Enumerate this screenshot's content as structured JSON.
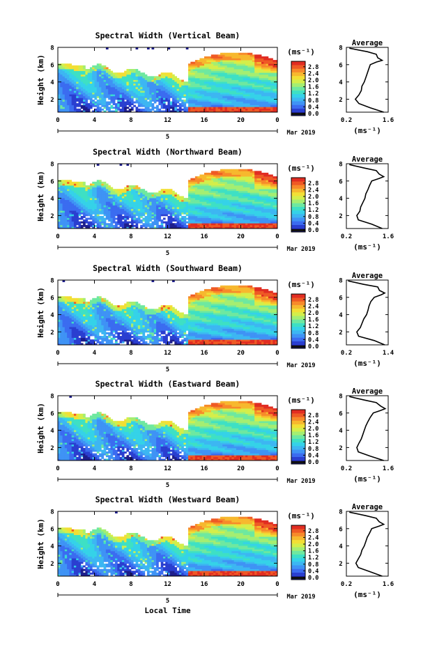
{
  "figure": {
    "ylabel": "Height (km)",
    "unit": "(ms⁻¹)",
    "date_label": "Mar 2019",
    "day_label": "5",
    "xlabel_bottom": "Local Time",
    "average_title": "Average"
  },
  "chart_data": [
    {
      "type": "heatmap",
      "title": "Spectral Width (Vertical Beam)",
      "x_ticks": [
        "0",
        "4",
        "8",
        "12",
        "16",
        "20",
        "0"
      ],
      "y_ticks": [
        "2",
        "4",
        "6",
        "8"
      ],
      "xlim": [
        0,
        24
      ],
      "ylim": [
        0.5,
        8
      ],
      "colorbar_ticks": [
        "0.0",
        "0.4",
        "0.8",
        "1.2",
        "1.6",
        "2.0",
        "2.4",
        "2.8"
      ],
      "colorbar_range": [
        0.0,
        3.0
      ],
      "profile": {
        "title": "Average",
        "x_ticks": [
          "0.2",
          "1.6"
        ],
        "xlim": [
          0.2,
          1.6
        ],
        "ylim": [
          0.5,
          8
        ],
        "y_ticks": [
          "2",
          "4",
          "6",
          "8"
        ],
        "xlabel": "(ms⁻¹)",
        "points": [
          [
            1.45,
            0.5
          ],
          [
            1.0,
            1.0
          ],
          [
            0.62,
            1.5
          ],
          [
            0.5,
            2.0
          ],
          [
            0.62,
            2.5
          ],
          [
            0.7,
            3.0
          ],
          [
            0.72,
            3.5
          ],
          [
            0.8,
            4.0
          ],
          [
            0.85,
            4.5
          ],
          [
            0.9,
            5.0
          ],
          [
            0.95,
            5.5
          ],
          [
            1.0,
            6.0
          ],
          [
            1.2,
            6.3
          ],
          [
            1.4,
            6.5
          ],
          [
            1.25,
            6.8
          ],
          [
            1.2,
            7.2
          ],
          [
            0.9,
            7.5
          ],
          [
            0.3,
            7.9
          ]
        ]
      }
    },
    {
      "type": "heatmap",
      "title": "Spectral Width (Northward Beam)",
      "x_ticks": [
        "0",
        "4",
        "8",
        "12",
        "16",
        "20",
        "0"
      ],
      "y_ticks": [
        "2",
        "4",
        "6",
        "8"
      ],
      "xlim": [
        0,
        24
      ],
      "ylim": [
        0.5,
        8
      ],
      "colorbar_ticks": [
        "0.0",
        "0.4",
        "0.8",
        "1.2",
        "1.6",
        "2.0",
        "2.4",
        "2.8"
      ],
      "colorbar_range": [
        0.0,
        3.0
      ],
      "profile": {
        "title": "Average",
        "x_ticks": [
          "0.2",
          "1.6"
        ],
        "xlim": [
          0.2,
          1.6
        ],
        "ylim": [
          0.5,
          8
        ],
        "y_ticks": [
          "2",
          "4",
          "6",
          "8"
        ],
        "xlabel": "(ms⁻¹)",
        "points": [
          [
            1.4,
            0.5
          ],
          [
            1.05,
            1.0
          ],
          [
            0.6,
            1.5
          ],
          [
            0.55,
            2.0
          ],
          [
            0.65,
            2.5
          ],
          [
            0.68,
            3.0
          ],
          [
            0.75,
            3.5
          ],
          [
            0.82,
            4.0
          ],
          [
            0.85,
            4.5
          ],
          [
            0.92,
            5.0
          ],
          [
            0.98,
            5.5
          ],
          [
            1.05,
            6.0
          ],
          [
            1.3,
            6.3
          ],
          [
            1.45,
            6.5
          ],
          [
            1.3,
            6.8
          ],
          [
            1.2,
            7.2
          ],
          [
            0.8,
            7.5
          ],
          [
            0.3,
            7.9
          ]
        ]
      }
    },
    {
      "type": "heatmap",
      "title": "Spectral Width (Southward Beam)",
      "x_ticks": [
        "0",
        "4",
        "8",
        "12",
        "16",
        "20",
        "0"
      ],
      "y_ticks": [
        "2",
        "4",
        "6",
        "8"
      ],
      "xlim": [
        0,
        24
      ],
      "ylim": [
        0.5,
        8
      ],
      "colorbar_ticks": [
        "0.0",
        "0.4",
        "0.8",
        "1.2",
        "1.6",
        "2.0",
        "2.4",
        "2.8"
      ],
      "colorbar_range": [
        0.0,
        3.0
      ],
      "profile": {
        "title": "Average",
        "x_ticks": [
          "0.2",
          "1.4"
        ],
        "xlim": [
          0.2,
          1.4
        ],
        "ylim": [
          0.5,
          8
        ],
        "y_ticks": [
          "2",
          "4",
          "6",
          "8"
        ],
        "xlabel": "(ms⁻¹)",
        "points": [
          [
            1.3,
            0.5
          ],
          [
            1.0,
            1.0
          ],
          [
            0.55,
            1.5
          ],
          [
            0.5,
            2.0
          ],
          [
            0.6,
            2.5
          ],
          [
            0.65,
            3.0
          ],
          [
            0.7,
            3.5
          ],
          [
            0.78,
            4.0
          ],
          [
            0.82,
            4.5
          ],
          [
            0.85,
            5.0
          ],
          [
            0.9,
            5.5
          ],
          [
            1.0,
            6.0
          ],
          [
            1.2,
            6.3
          ],
          [
            1.3,
            6.5
          ],
          [
            1.15,
            6.8
          ],
          [
            1.1,
            7.2
          ],
          [
            0.7,
            7.5
          ],
          [
            0.25,
            7.9
          ]
        ]
      }
    },
    {
      "type": "heatmap",
      "title": "Spectral Width (Eastward Beam)",
      "x_ticks": [
        "0",
        "4",
        "8",
        "12",
        "16",
        "20",
        "0"
      ],
      "y_ticks": [
        "2",
        "4",
        "6",
        "8"
      ],
      "xlim": [
        0,
        24
      ],
      "ylim": [
        0.5,
        8
      ],
      "colorbar_ticks": [
        "0.0",
        "0.4",
        "0.8",
        "1.2",
        "1.6",
        "2.0",
        "2.4",
        "2.8"
      ],
      "colorbar_range": [
        0.0,
        3.0
      ],
      "profile": {
        "title": "Average",
        "x_ticks": [
          "0.2",
          "1.6"
        ],
        "xlim": [
          0.2,
          1.6
        ],
        "ylim": [
          0.5,
          8
        ],
        "y_ticks": [
          "2",
          "4",
          "6",
          "8"
        ],
        "xlabel": "(ms⁻¹)",
        "points": [
          [
            1.45,
            0.5
          ],
          [
            1.0,
            1.0
          ],
          [
            0.6,
            1.5
          ],
          [
            0.55,
            2.0
          ],
          [
            0.62,
            2.5
          ],
          [
            0.7,
            3.0
          ],
          [
            0.75,
            3.5
          ],
          [
            0.8,
            4.0
          ],
          [
            0.85,
            4.5
          ],
          [
            0.92,
            5.0
          ],
          [
            1.0,
            5.5
          ],
          [
            1.1,
            6.0
          ],
          [
            1.35,
            6.3
          ],
          [
            1.5,
            6.5
          ],
          [
            1.35,
            6.8
          ],
          [
            1.2,
            7.2
          ],
          [
            0.8,
            7.5
          ],
          [
            0.3,
            7.9
          ]
        ]
      }
    },
    {
      "type": "heatmap",
      "title": "Spectral Width (Westward Beam)",
      "x_ticks": [
        "0",
        "4",
        "8",
        "12",
        "16",
        "20",
        "0"
      ],
      "y_ticks": [
        "2",
        "4",
        "6",
        "8"
      ],
      "xlim": [
        0,
        24
      ],
      "ylim": [
        0.5,
        8
      ],
      "colorbar_ticks": [
        "0.0",
        "0.4",
        "0.8",
        "1.2",
        "1.6",
        "2.0",
        "2.4",
        "2.8"
      ],
      "colorbar_range": [
        0.0,
        3.0
      ],
      "profile": {
        "title": "Average",
        "x_ticks": [
          "0.2",
          "1.6"
        ],
        "xlim": [
          0.2,
          1.6
        ],
        "ylim": [
          0.5,
          8
        ],
        "y_ticks": [
          "2",
          "4",
          "6",
          "8"
        ],
        "xlabel": "(ms⁻¹)",
        "points": [
          [
            1.4,
            0.5
          ],
          [
            1.0,
            1.0
          ],
          [
            0.6,
            1.5
          ],
          [
            0.52,
            2.0
          ],
          [
            0.6,
            2.5
          ],
          [
            0.68,
            3.0
          ],
          [
            0.72,
            3.5
          ],
          [
            0.8,
            4.0
          ],
          [
            0.85,
            4.5
          ],
          [
            0.9,
            5.0
          ],
          [
            0.98,
            5.5
          ],
          [
            1.05,
            6.0
          ],
          [
            1.3,
            6.3
          ],
          [
            1.45,
            6.5
          ],
          [
            1.3,
            6.8
          ],
          [
            1.2,
            7.2
          ],
          [
            0.85,
            7.5
          ],
          [
            0.3,
            7.9
          ]
        ]
      }
    }
  ]
}
